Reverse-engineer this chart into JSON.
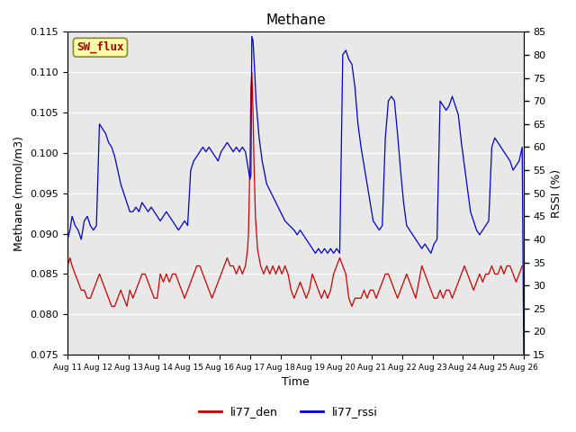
{
  "title": "Methane",
  "ylabel_left": "Methane (mmol/m3)",
  "ylabel_right": "RSSI (%)",
  "xlabel": "Time",
  "ylim_left": [
    0.075,
    0.115
  ],
  "ylim_right": [
    15,
    85
  ],
  "yticks_left": [
    0.075,
    0.08,
    0.085,
    0.09,
    0.095,
    0.1,
    0.105,
    0.11,
    0.115
  ],
  "yticks_right": [
    15,
    20,
    25,
    30,
    35,
    40,
    45,
    50,
    55,
    60,
    65,
    70,
    75,
    80,
    85
  ],
  "xtick_labels": [
    "Aug 11",
    "Aug 12",
    "Aug 13",
    "Aug 14",
    "Aug 15",
    "Aug 16",
    "Aug 17",
    "Aug 18",
    "Aug 19",
    "Aug 20",
    "Aug 21",
    "Aug 22",
    "Aug 23",
    "Aug 24",
    "Aug 25",
    "Aug 26"
  ],
  "color_red": "#cc0000",
  "color_blue": "#0000cc",
  "bg_color": "#e8e8e8",
  "box_facecolor": "#ffffaa",
  "box_edgecolor": "#888833",
  "box_text": "SW_flux",
  "box_text_color": "#aa0000",
  "legend_labels": [
    "li77_den",
    "li77_rssi"
  ],
  "label_fontsize": 9,
  "title_fontsize": 11,
  "red_x": [
    0.0,
    0.08,
    0.15,
    0.25,
    0.35,
    0.45,
    0.55,
    0.65,
    0.75,
    0.85,
    0.95,
    1.05,
    1.15,
    1.25,
    1.35,
    1.45,
    1.55,
    1.65,
    1.75,
    1.85,
    1.95,
    2.05,
    2.15,
    2.25,
    2.35,
    2.45,
    2.55,
    2.65,
    2.75,
    2.85,
    2.95,
    3.05,
    3.15,
    3.25,
    3.35,
    3.45,
    3.55,
    3.65,
    3.75,
    3.85,
    3.95,
    4.05,
    4.15,
    4.25,
    4.35,
    4.45,
    4.55,
    4.65,
    4.75,
    4.85,
    4.95,
    5.05,
    5.15,
    5.25,
    5.35,
    5.45,
    5.55,
    5.65,
    5.75,
    5.85,
    5.92,
    5.95,
    6.0,
    6.03,
    6.06,
    6.1,
    6.13,
    6.18,
    6.25,
    6.35,
    6.45,
    6.55,
    6.65,
    6.75,
    6.85,
    6.95,
    7.05,
    7.15,
    7.25,
    7.35,
    7.45,
    7.55,
    7.65,
    7.75,
    7.85,
    7.95,
    8.05,
    8.15,
    8.25,
    8.35,
    8.45,
    8.55,
    8.65,
    8.75,
    8.85,
    8.95,
    9.05,
    9.15,
    9.25,
    9.35,
    9.45,
    9.55,
    9.65,
    9.75,
    9.85,
    9.95,
    10.05,
    10.15,
    10.25,
    10.35,
    10.45,
    10.55,
    10.65,
    10.75,
    10.85,
    10.95,
    11.05,
    11.15,
    11.25,
    11.35,
    11.45,
    11.55,
    11.65,
    11.75,
    11.85,
    11.95,
    12.05,
    12.15,
    12.25,
    12.35,
    12.45,
    12.55,
    12.65,
    12.75,
    12.85,
    12.95,
    13.05,
    13.15,
    13.25,
    13.35,
    13.45,
    13.55,
    13.65,
    13.75,
    13.85,
    13.95,
    14.05,
    14.15,
    14.25,
    14.35,
    14.45,
    14.55,
    14.65,
    14.75,
    14.85,
    14.95
  ],
  "red_y": [
    0.086,
    0.087,
    0.086,
    0.085,
    0.084,
    0.083,
    0.083,
    0.082,
    0.082,
    0.083,
    0.084,
    0.085,
    0.084,
    0.083,
    0.082,
    0.081,
    0.081,
    0.082,
    0.083,
    0.082,
    0.081,
    0.083,
    0.082,
    0.083,
    0.084,
    0.085,
    0.085,
    0.084,
    0.083,
    0.082,
    0.082,
    0.085,
    0.084,
    0.085,
    0.084,
    0.085,
    0.085,
    0.084,
    0.083,
    0.082,
    0.083,
    0.084,
    0.085,
    0.086,
    0.086,
    0.085,
    0.084,
    0.083,
    0.082,
    0.083,
    0.084,
    0.085,
    0.086,
    0.087,
    0.086,
    0.086,
    0.085,
    0.086,
    0.085,
    0.086,
    0.088,
    0.09,
    0.099,
    0.108,
    0.11,
    0.105,
    0.099,
    0.092,
    0.088,
    0.086,
    0.085,
    0.086,
    0.085,
    0.086,
    0.085,
    0.086,
    0.085,
    0.086,
    0.085,
    0.083,
    0.082,
    0.083,
    0.084,
    0.083,
    0.082,
    0.083,
    0.085,
    0.084,
    0.083,
    0.082,
    0.083,
    0.082,
    0.083,
    0.085,
    0.086,
    0.087,
    0.086,
    0.085,
    0.082,
    0.081,
    0.082,
    0.082,
    0.082,
    0.083,
    0.082,
    0.083,
    0.083,
    0.082,
    0.083,
    0.084,
    0.085,
    0.085,
    0.084,
    0.083,
    0.082,
    0.083,
    0.084,
    0.085,
    0.084,
    0.083,
    0.082,
    0.084,
    0.086,
    0.085,
    0.084,
    0.083,
    0.082,
    0.082,
    0.083,
    0.082,
    0.083,
    0.083,
    0.082,
    0.083,
    0.084,
    0.085,
    0.086,
    0.085,
    0.084,
    0.083,
    0.084,
    0.085,
    0.084,
    0.085,
    0.085,
    0.086,
    0.085,
    0.085,
    0.086,
    0.085,
    0.086,
    0.086,
    0.085,
    0.084,
    0.085,
    0.086
  ],
  "blue_x": [
    0.0,
    0.08,
    0.15,
    0.25,
    0.35,
    0.45,
    0.55,
    0.65,
    0.75,
    0.85,
    0.95,
    1.05,
    1.15,
    1.25,
    1.35,
    1.45,
    1.55,
    1.65,
    1.75,
    1.85,
    1.95,
    2.05,
    2.15,
    2.25,
    2.35,
    2.45,
    2.55,
    2.65,
    2.75,
    2.85,
    2.95,
    3.05,
    3.15,
    3.25,
    3.35,
    3.45,
    3.55,
    3.65,
    3.75,
    3.85,
    3.95,
    4.05,
    4.15,
    4.25,
    4.35,
    4.45,
    4.55,
    4.65,
    4.75,
    4.85,
    4.95,
    5.05,
    5.15,
    5.25,
    5.35,
    5.45,
    5.55,
    5.65,
    5.75,
    5.85,
    5.95,
    6.0,
    6.03,
    6.06,
    6.1,
    6.15,
    6.2,
    6.3,
    6.4,
    6.55,
    6.7,
    6.85,
    7.0,
    7.15,
    7.3,
    7.45,
    7.55,
    7.65,
    7.75,
    7.85,
    7.95,
    8.05,
    8.15,
    8.25,
    8.35,
    8.45,
    8.55,
    8.65,
    8.75,
    8.85,
    8.95,
    9.05,
    9.15,
    9.25,
    9.35,
    9.45,
    9.55,
    9.65,
    9.75,
    9.85,
    9.95,
    10.05,
    10.15,
    10.25,
    10.35,
    10.45,
    10.55,
    10.65,
    10.75,
    10.85,
    10.95,
    11.05,
    11.15,
    11.25,
    11.35,
    11.45,
    11.55,
    11.65,
    11.75,
    11.85,
    11.95,
    12.05,
    12.15,
    12.25,
    12.35,
    12.45,
    12.55,
    12.65,
    12.75,
    12.85,
    12.95,
    13.05,
    13.15,
    13.25,
    13.35,
    13.45,
    13.55,
    13.65,
    13.75,
    13.85,
    13.95,
    14.05,
    14.15,
    14.25,
    14.35,
    14.45,
    14.55,
    14.65,
    14.75,
    14.85,
    14.95,
    15.0
  ],
  "blue_rssi": [
    40,
    42,
    45,
    43,
    42,
    40,
    44,
    45,
    43,
    42,
    43,
    65,
    64,
    63,
    61,
    60,
    58,
    55,
    52,
    50,
    48,
    46,
    46,
    47,
    46,
    48,
    47,
    46,
    47,
    46,
    45,
    44,
    45,
    46,
    45,
    44,
    43,
    42,
    43,
    44,
    43,
    55,
    57,
    58,
    59,
    60,
    59,
    60,
    59,
    58,
    57,
    59,
    60,
    61,
    60,
    59,
    60,
    59,
    60,
    59,
    55,
    53,
    54,
    84,
    83,
    77,
    70,
    62,
    57,
    52,
    50,
    48,
    46,
    44,
    43,
    42,
    41,
    42,
    41,
    40,
    39,
    38,
    37,
    38,
    37,
    38,
    37,
    38,
    37,
    38,
    37,
    80,
    81,
    79,
    78,
    73,
    65,
    60,
    56,
    52,
    48,
    44,
    43,
    42,
    43,
    62,
    70,
    71,
    70,
    63,
    55,
    48,
    43,
    42,
    41,
    40,
    39,
    38,
    39,
    38,
    37,
    39,
    40,
    70,
    69,
    68,
    69,
    71,
    69,
    67,
    61,
    56,
    51,
    46,
    44,
    42,
    41,
    42,
    43,
    44,
    60,
    62,
    61,
    60,
    59,
    58,
    57,
    55,
    56,
    57,
    60,
    15
  ]
}
